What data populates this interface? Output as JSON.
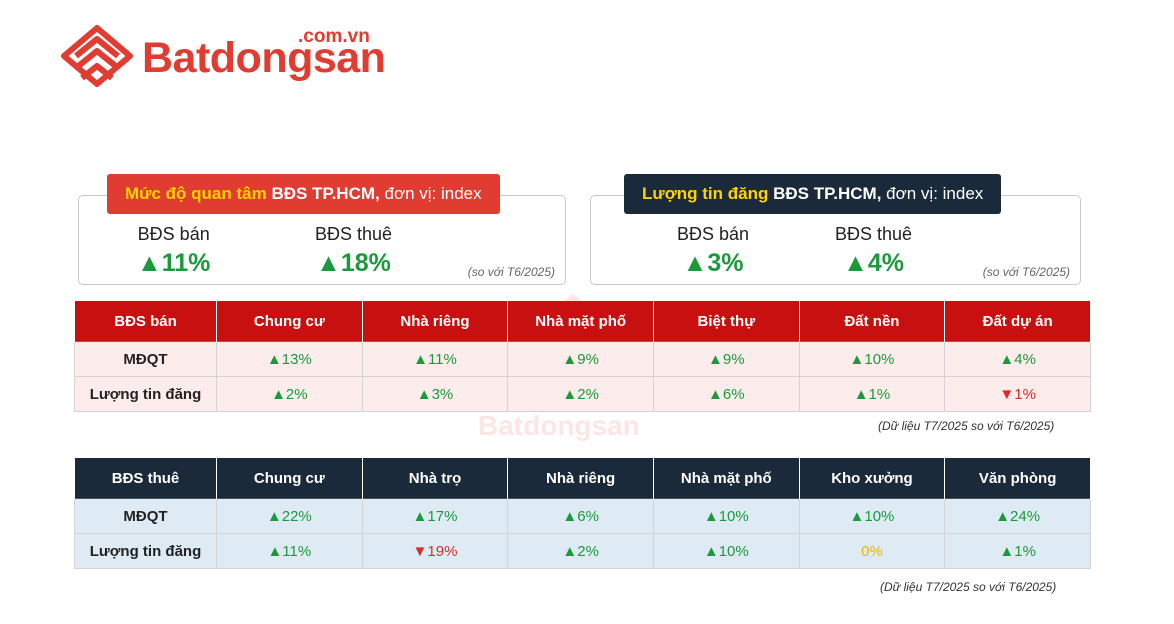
{
  "brand": {
    "name": "Batdongsan",
    "domain": ".com.vn",
    "color": "#e03c31"
  },
  "cards": [
    {
      "title_highlight": "Mức độ quan tâm",
      "title_bold": "BĐS TP.HCM,",
      "title_rest": "đơn vị: index",
      "metrics": [
        {
          "label": "BĐS bán",
          "value": "▲11%"
        },
        {
          "label": "BĐS thuê",
          "value": "▲18%"
        }
      ],
      "note": "(so với T6/2025)"
    },
    {
      "title_highlight": "Lượng tin đăng",
      "title_bold": "BĐS TP.HCM,",
      "title_rest": "đơn vị: index",
      "metrics": [
        {
          "label": "BĐS bán",
          "value": "▲3%"
        },
        {
          "label": "BĐS thuê",
          "value": "▲4%"
        }
      ],
      "note": "(so với T6/2025)"
    }
  ],
  "sale_table": {
    "headers": [
      "BĐS bán",
      "Chung cư",
      "Nhà riêng",
      "Nhà mặt phố",
      "Biệt thự",
      "Đất nền",
      "Đất dự án"
    ],
    "rows": [
      {
        "label": "MĐQT",
        "cells": [
          {
            "text": "▲13%",
            "trend": "up"
          },
          {
            "text": "▲11%",
            "trend": "up"
          },
          {
            "text": "▲9%",
            "trend": "up"
          },
          {
            "text": "▲9%",
            "trend": "up"
          },
          {
            "text": "▲10%",
            "trend": "up"
          },
          {
            "text": "▲4%",
            "trend": "up"
          }
        ]
      },
      {
        "label": "Lượng tin đăng",
        "cells": [
          {
            "text": "▲2%",
            "trend": "up"
          },
          {
            "text": "▲3%",
            "trend": "up"
          },
          {
            "text": "▲2%",
            "trend": "up"
          },
          {
            "text": "▲6%",
            "trend": "up"
          },
          {
            "text": "▲1%",
            "trend": "up"
          },
          {
            "text": "▼1%",
            "trend": "down"
          }
        ]
      }
    ],
    "note": "(Dữ liệu T7/2025 so với T6/2025)"
  },
  "rent_table": {
    "headers": [
      "BĐS thuê",
      "Chung cư",
      "Nhà trọ",
      "Nhà riêng",
      "Nhà mặt phố",
      "Kho xưởng",
      "Văn phòng"
    ],
    "rows": [
      {
        "label": "MĐQT",
        "cells": [
          {
            "text": "▲22%",
            "trend": "up"
          },
          {
            "text": "▲17%",
            "trend": "up"
          },
          {
            "text": "▲6%",
            "trend": "up"
          },
          {
            "text": "▲10%",
            "trend": "up"
          },
          {
            "text": "▲10%",
            "trend": "up"
          },
          {
            "text": "▲24%",
            "trend": "up"
          }
        ]
      },
      {
        "label": "Lượng tin đăng",
        "cells": [
          {
            "text": "▲11%",
            "trend": "up"
          },
          {
            "text": "▼19%",
            "trend": "down"
          },
          {
            "text": "▲2%",
            "trend": "up"
          },
          {
            "text": "▲10%",
            "trend": "up"
          },
          {
            "text": "0%",
            "trend": "flat"
          },
          {
            "text": "▲1%",
            "trend": "up"
          }
        ]
      }
    ],
    "note": "(Dữ liệu T7/2025 so với T6/2025)"
  },
  "colors": {
    "up": "#1a9a3a",
    "down": "#d92c2c",
    "flat": "#f0b400",
    "sale_header": "#c81010",
    "rent_header": "#1b2a3b",
    "highlight": "#ffd200"
  }
}
